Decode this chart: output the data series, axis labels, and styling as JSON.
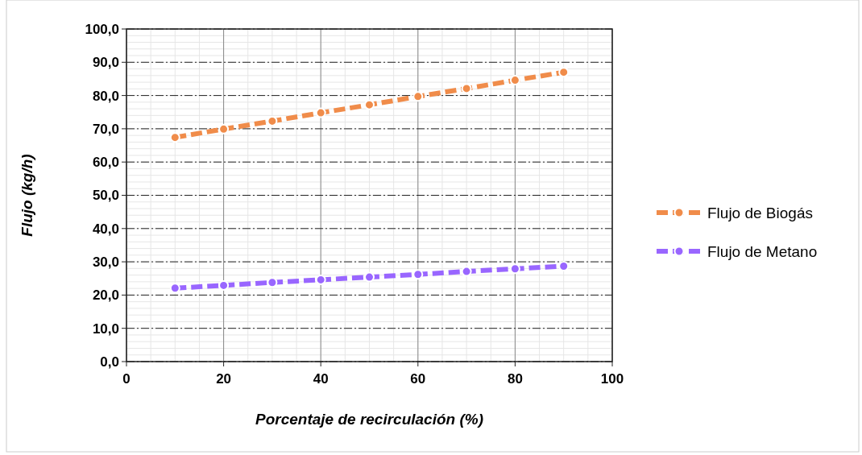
{
  "chart_data": {
    "type": "line",
    "xlabel": "Porcentaje de recirculación (%)",
    "ylabel": "Flujo (kg/h)",
    "x": [
      10,
      20,
      30,
      40,
      50,
      60,
      70,
      80,
      90
    ],
    "series": [
      {
        "name": "Flujo de Biogás",
        "color": "#f08c4a",
        "values": [
          67.4,
          69.9,
          72.3,
          74.8,
          77.2,
          79.7,
          82.1,
          84.6,
          87.0
        ]
      },
      {
        "name": "Flujo de Metano",
        "color": "#9966ff",
        "values": [
          22.1,
          22.9,
          23.8,
          24.6,
          25.4,
          26.2,
          27.1,
          27.9,
          28.7
        ]
      }
    ],
    "xlim": [
      0,
      100
    ],
    "xticks": [
      0,
      20,
      40,
      60,
      80,
      100
    ],
    "ylim": [
      0,
      100
    ],
    "yticks": [
      {
        "value": 0,
        "label": "0,0"
      },
      {
        "value": 10,
        "label": "10,0"
      },
      {
        "value": 20,
        "label": "20,0"
      },
      {
        "value": 30,
        "label": "30,0"
      },
      {
        "value": 40,
        "label": "40,0"
      },
      {
        "value": 50,
        "label": "50,0"
      },
      {
        "value": 60,
        "label": "60,0"
      },
      {
        "value": 70,
        "label": "70,0"
      },
      {
        "value": 80,
        "label": "80,0"
      },
      {
        "value": 90,
        "label": "90,0"
      },
      {
        "value": 100,
        "label": "100,0"
      }
    ],
    "grid": true,
    "legend": "right",
    "marker": "circle",
    "line_style": "dashed"
  }
}
